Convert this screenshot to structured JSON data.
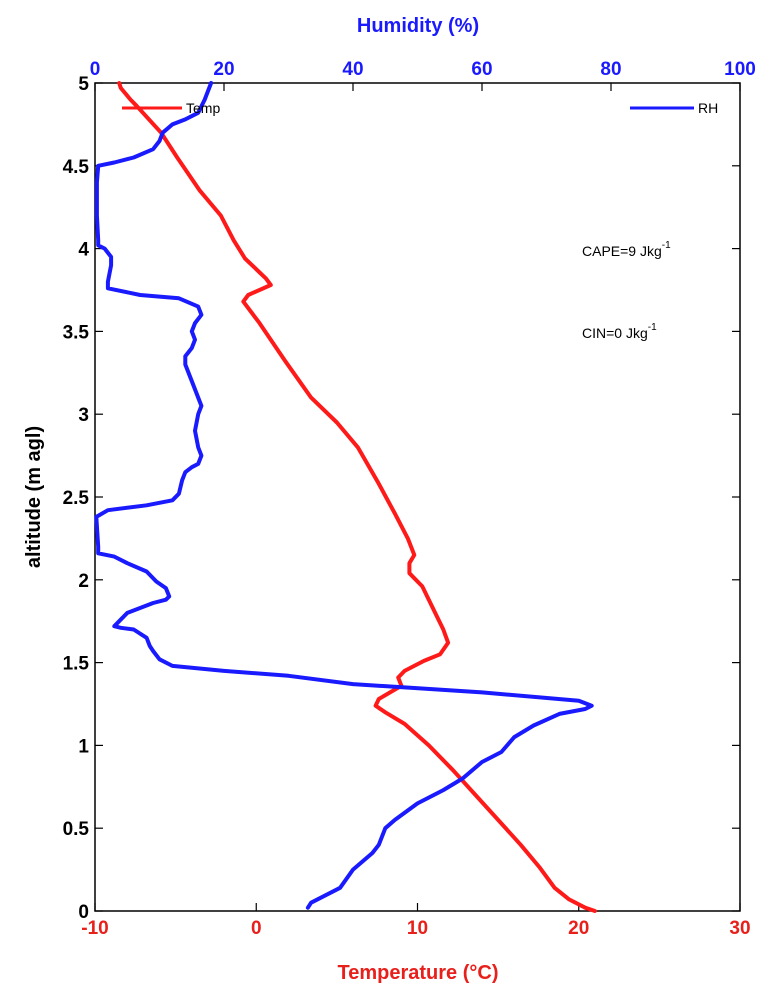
{
  "chart_data": {
    "type": "line",
    "xlabel": "Temperature (",
    "xlabel_unit": "°C)",
    "x2label": "Humidity (%)",
    "ylabel": "altitude (m agl)",
    "xlim": [
      -10,
      30
    ],
    "x2lim": [
      0,
      100
    ],
    "ylim": [
      0,
      5
    ],
    "x_ticks": [
      "-10",
      "0",
      "10",
      "20",
      "30"
    ],
    "x2_ticks": [
      "0",
      "20",
      "40",
      "60",
      "80",
      "100"
    ],
    "y_ticks": [
      "0",
      "0.5",
      "1",
      "1.5",
      "2",
      "2.5",
      "3",
      "3.5",
      "4",
      "4.5",
      "5"
    ],
    "grid": false,
    "legend": [
      {
        "name": "Temp",
        "position": "top-left"
      },
      {
        "name": "RH",
        "position": "top-right"
      }
    ],
    "annotations": {
      "cape_text": "CAPE=9 Jkg",
      "cape_exp": "-1",
      "cin_text": "CIN=0 Jkg",
      "cin_exp": "-1"
    },
    "colors": {
      "temp": "#ff1a1a",
      "rh": "#1a1aff",
      "axis": "#000000"
    },
    "series": [
      {
        "name": "Temp",
        "axis": "bottom",
        "points": [
          [
            21.0,
            0.0
          ],
          [
            20.4,
            0.02
          ],
          [
            19.4,
            0.07
          ],
          [
            18.5,
            0.14
          ],
          [
            17.6,
            0.26
          ],
          [
            16.4,
            0.4
          ],
          [
            15.0,
            0.55
          ],
          [
            13.6,
            0.7
          ],
          [
            12.2,
            0.85
          ],
          [
            10.7,
            1.0
          ],
          [
            9.2,
            1.13
          ],
          [
            8.0,
            1.2
          ],
          [
            7.4,
            1.24
          ],
          [
            7.6,
            1.28
          ],
          [
            8.3,
            1.32
          ],
          [
            9.0,
            1.36
          ],
          [
            8.8,
            1.41
          ],
          [
            9.2,
            1.45
          ],
          [
            10.4,
            1.51
          ],
          [
            11.4,
            1.55
          ],
          [
            11.9,
            1.62
          ],
          [
            11.6,
            1.7
          ],
          [
            11.0,
            1.82
          ],
          [
            10.3,
            1.96
          ],
          [
            9.5,
            2.04
          ],
          [
            9.5,
            2.1
          ],
          [
            9.8,
            2.15
          ],
          [
            9.4,
            2.25
          ],
          [
            8.6,
            2.4
          ],
          [
            7.6,
            2.58
          ],
          [
            6.3,
            2.8
          ],
          [
            5.0,
            2.95
          ],
          [
            3.4,
            3.1
          ],
          [
            1.8,
            3.32
          ],
          [
            0.2,
            3.55
          ],
          [
            -0.8,
            3.68
          ],
          [
            -0.5,
            3.72
          ],
          [
            0.9,
            3.78
          ],
          [
            0.6,
            3.82
          ],
          [
            -0.7,
            3.94
          ],
          [
            -1.4,
            4.05
          ],
          [
            -2.2,
            4.2
          ],
          [
            -3.5,
            4.35
          ],
          [
            -4.9,
            4.55
          ],
          [
            -5.9,
            4.7
          ],
          [
            -7.4,
            4.86
          ],
          [
            -7.8,
            4.9
          ],
          [
            -8.4,
            4.97
          ],
          [
            -8.5,
            5.0
          ]
        ]
      },
      {
        "name": "RH",
        "axis": "top",
        "points": [
          [
            33.0,
            0.02
          ],
          [
            33.5,
            0.05
          ],
          [
            38.0,
            0.14
          ],
          [
            40.0,
            0.25
          ],
          [
            43.0,
            0.35
          ],
          [
            44.0,
            0.4
          ],
          [
            45.0,
            0.5
          ],
          [
            46.5,
            0.55
          ],
          [
            50.0,
            0.65
          ],
          [
            54.0,
            0.73
          ],
          [
            57.0,
            0.8
          ],
          [
            60.0,
            0.9
          ],
          [
            63.0,
            0.96
          ],
          [
            65.0,
            1.05
          ],
          [
            68.0,
            1.12
          ],
          [
            72.0,
            1.19
          ],
          [
            76.0,
            1.22
          ],
          [
            77.0,
            1.24
          ],
          [
            75.0,
            1.27
          ],
          [
            60.0,
            1.32
          ],
          [
            48.0,
            1.35
          ],
          [
            40.0,
            1.37
          ],
          [
            30.0,
            1.42
          ],
          [
            20.0,
            1.45
          ],
          [
            12.0,
            1.48
          ],
          [
            10.0,
            1.52
          ],
          [
            9.0,
            1.57
          ],
          [
            8.5,
            1.6
          ],
          [
            8.0,
            1.65
          ],
          [
            6.0,
            1.7
          ],
          [
            4.0,
            1.71
          ],
          [
            3.0,
            1.72
          ],
          [
            5.0,
            1.8
          ],
          [
            9.0,
            1.86
          ],
          [
            11.0,
            1.88
          ],
          [
            11.5,
            1.9
          ],
          [
            11.0,
            1.95
          ],
          [
            9.5,
            1.99
          ],
          [
            8.0,
            2.05
          ],
          [
            5.0,
            2.1
          ],
          [
            3.0,
            2.14
          ],
          [
            0.5,
            2.16
          ],
          [
            0.5,
            2.2
          ],
          [
            0.2,
            2.38
          ],
          [
            2.0,
            2.42
          ],
          [
            8.0,
            2.45
          ],
          [
            12.0,
            2.48
          ],
          [
            13.0,
            2.52
          ],
          [
            13.5,
            2.6
          ],
          [
            14.0,
            2.65
          ],
          [
            15.0,
            2.68
          ],
          [
            16.0,
            2.7
          ],
          [
            16.5,
            2.75
          ],
          [
            16.0,
            2.8
          ],
          [
            15.5,
            2.9
          ],
          [
            16.0,
            3.0
          ],
          [
            16.5,
            3.05
          ],
          [
            16.0,
            3.1
          ],
          [
            15.0,
            3.2
          ],
          [
            14.0,
            3.3
          ],
          [
            14.0,
            3.35
          ],
          [
            15.0,
            3.4
          ],
          [
            15.5,
            3.45
          ],
          [
            15.0,
            3.5
          ],
          [
            15.5,
            3.55
          ],
          [
            16.5,
            3.6
          ],
          [
            16.0,
            3.65
          ],
          [
            13.0,
            3.7
          ],
          [
            7.0,
            3.72
          ],
          [
            2.0,
            3.76
          ],
          [
            2.0,
            3.8
          ],
          [
            2.5,
            3.9
          ],
          [
            2.5,
            3.95
          ],
          [
            1.5,
            4.0
          ],
          [
            0.5,
            4.02
          ],
          [
            0.5,
            4.05
          ],
          [
            0.3,
            4.2
          ],
          [
            0.3,
            4.4
          ],
          [
            0.5,
            4.5
          ],
          [
            3.0,
            4.52
          ],
          [
            6.0,
            4.55
          ],
          [
            9.0,
            4.6
          ],
          [
            10.0,
            4.65
          ],
          [
            10.5,
            4.7
          ],
          [
            12.0,
            4.75
          ],
          [
            14.0,
            4.78
          ],
          [
            16.0,
            4.82
          ],
          [
            17.0,
            4.9
          ],
          [
            18.0,
            5.0
          ]
        ]
      }
    ]
  }
}
